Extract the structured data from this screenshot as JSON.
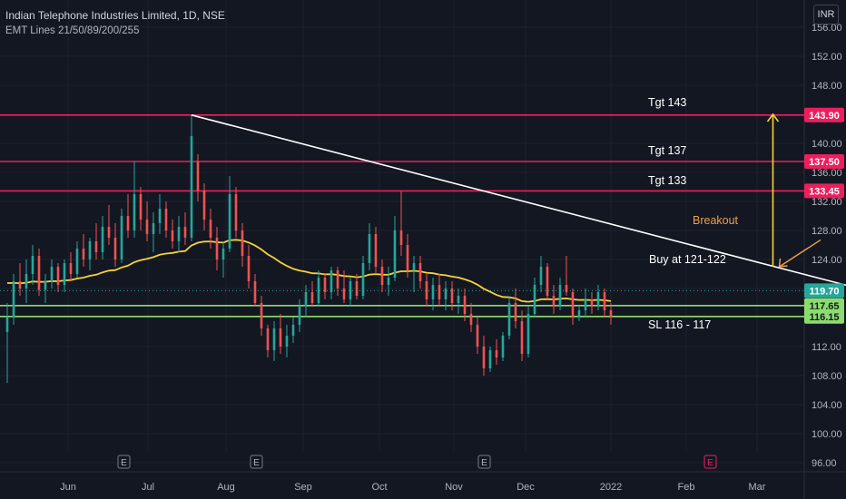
{
  "header": {
    "title": "Indian Telephone Industries Limited, 1D, NSE",
    "indicator": "EMT Lines 21/50/89/200/255"
  },
  "currency": "INR",
  "colors": {
    "background": "#131722",
    "grid": "#1e222d",
    "up": "#26a69a",
    "down": "#ef5350",
    "ema": "#f5d33b",
    "resistance": "#ec1f5d",
    "support": "#8bdc6e",
    "trendline": "#ffffff",
    "arrow": "#f5d33b",
    "breakout": "#f0a04b"
  },
  "chart_data": {
    "type": "candlestick",
    "yticks": [
      "156.00",
      "152.00",
      "148.00",
      "144.00",
      "140.00",
      "136.00",
      "132.00",
      "128.00",
      "124.00",
      "120.00",
      "116.00",
      "112.00",
      "108.00",
      "104.00",
      "100.00",
      "96.00"
    ],
    "ylim": [
      95,
      158
    ],
    "x_labels": [
      "Jun",
      "Jul",
      "Aug",
      "Sep",
      "Oct",
      "Nov",
      "Dec",
      "2022",
      "Feb",
      "Mar"
    ],
    "levels": [
      {
        "price": 143.9,
        "label": "143.90",
        "kind": "resistance"
      },
      {
        "price": 137.5,
        "label": "137.50",
        "kind": "resistance"
      },
      {
        "price": 133.45,
        "label": "133.45",
        "kind": "resistance"
      },
      {
        "price": 117.65,
        "label": "117.65",
        "kind": "support"
      },
      {
        "price": 116.15,
        "label": "116.15",
        "kind": "support"
      }
    ],
    "last_price": {
      "price": 119.7,
      "label": "119.70"
    },
    "annotations": {
      "tgt143": "Tgt 143",
      "tgt137": "Tgt 137",
      "tgt133": "Tgt 133",
      "breakout": "Breakout",
      "buy": "Buy at 121-122",
      "sl": "SL 116 - 117"
    },
    "earnings_markers": [
      {
        "label": "E",
        "day": 35
      },
      {
        "label": "E",
        "day": 97
      },
      {
        "label": "E",
        "day": 184
      },
      {
        "label": "E",
        "day": 269
      }
    ],
    "trendline": {
      "start": {
        "day": 58,
        "price": 143.9
      },
      "end": {
        "day": 268,
        "price": 120.0
      }
    },
    "target_arrow": {
      "day": 241,
      "from": 123.0,
      "to": 144.0
    },
    "breakout_arrow": {
      "from": {
        "day": 256,
        "price": 126.7
      },
      "to": {
        "day": 243,
        "price": 123.0
      }
    },
    "candles": [
      [
        0,
        114.0,
        118.0,
        107.0,
        116.0
      ],
      [
        2,
        116.0,
        122.0,
        115.0,
        121.0
      ],
      [
        4,
        121.0,
        123.5,
        119.0,
        120.0
      ],
      [
        6,
        120.0,
        124.0,
        118.0,
        122.0
      ],
      [
        8,
        122.0,
        126.0,
        120.5,
        124.5
      ],
      [
        10,
        124.5,
        125.5,
        119.0,
        119.8
      ],
      [
        12,
        119.8,
        122.0,
        118.0,
        121.0
      ],
      [
        14,
        121.0,
        124.0,
        120.0,
        123.0
      ],
      [
        16,
        123.0,
        123.5,
        119.5,
        120.5
      ],
      [
        18,
        120.5,
        124.0,
        119.5,
        123.5
      ],
      [
        20,
        123.5,
        125.0,
        121.0,
        122.0
      ],
      [
        22,
        122.0,
        126.5,
        121.5,
        125.5
      ],
      [
        24,
        125.5,
        127.5,
        123.0,
        124.0
      ],
      [
        26,
        124.0,
        127.0,
        122.5,
        126.5
      ],
      [
        28,
        126.5,
        129.0,
        124.0,
        125.0
      ],
      [
        30,
        125.0,
        130.0,
        124.0,
        128.5
      ],
      [
        32,
        128.5,
        131.5,
        126.0,
        127.0
      ],
      [
        34,
        127.0,
        129.0,
        123.0,
        124.0
      ],
      [
        36,
        124.0,
        131.0,
        123.5,
        130.0
      ],
      [
        38,
        130.0,
        133.0,
        127.0,
        128.0
      ],
      [
        40,
        128.0,
        137.5,
        127.0,
        133.0
      ],
      [
        42,
        133.0,
        134.0,
        128.0,
        129.5
      ],
      [
        44,
        129.5,
        132.0,
        126.5,
        127.5
      ],
      [
        46,
        127.5,
        130.5,
        125.0,
        129.0
      ],
      [
        48,
        129.0,
        133.0,
        127.5,
        131.0
      ],
      [
        50,
        131.0,
        132.0,
        127.0,
        128.0
      ],
      [
        52,
        128.0,
        129.5,
        125.5,
        126.5
      ],
      [
        54,
        126.5,
        130.0,
        125.0,
        128.5
      ],
      [
        56,
        128.5,
        130.5,
        126.0,
        127.0
      ],
      [
        58,
        127.0,
        143.9,
        126.5,
        141.0
      ],
      [
        60,
        137.5,
        138.5,
        132.0,
        133.5
      ],
      [
        62,
        133.5,
        134.5,
        128.0,
        129.5
      ],
      [
        64,
        129.5,
        131.0,
        125.5,
        127.0
      ],
      [
        66,
        127.0,
        128.5,
        122.5,
        124.0
      ],
      [
        68,
        124.0,
        126.5,
        121.5,
        125.5
      ],
      [
        70,
        125.5,
        135.5,
        125.0,
        133.0
      ],
      [
        72,
        133.0,
        134.0,
        127.0,
        128.0
      ],
      [
        74,
        128.0,
        129.0,
        123.0,
        124.5
      ],
      [
        76,
        124.5,
        126.0,
        120.0,
        121.0
      ],
      [
        78,
        121.0,
        122.0,
        117.5,
        118.0
      ],
      [
        80,
        118.0,
        119.0,
        113.5,
        114.5
      ],
      [
        82,
        114.5,
        115.0,
        110.5,
        111.5
      ],
      [
        84,
        111.5,
        115.5,
        110.0,
        114.5
      ],
      [
        86,
        114.5,
        116.5,
        111.0,
        112.0
      ],
      [
        88,
        112.0,
        115.0,
        110.5,
        113.5
      ],
      [
        90,
        113.5,
        116.0,
        112.5,
        115.0
      ],
      [
        92,
        115.0,
        118.5,
        114.0,
        117.5
      ],
      [
        94,
        117.5,
        120.5,
        116.0,
        119.5
      ],
      [
        96,
        119.5,
        121.0,
        117.5,
        118.0
      ],
      [
        98,
        118.0,
        122.5,
        117.5,
        121.5
      ],
      [
        100,
        121.5,
        122.0,
        118.5,
        119.5
      ],
      [
        102,
        119.5,
        123.0,
        118.5,
        122.5
      ],
      [
        104,
        122.5,
        123.0,
        119.0,
        120.0
      ],
      [
        106,
        120.0,
        122.5,
        118.0,
        118.5
      ],
      [
        108,
        118.5,
        121.5,
        117.5,
        121.0
      ],
      [
        110,
        121.0,
        122.0,
        118.5,
        119.0
      ],
      [
        112,
        119.0,
        124.5,
        118.5,
        123.5
      ],
      [
        114,
        123.5,
        129.0,
        122.5,
        127.5
      ],
      [
        116,
        127.5,
        128.5,
        122.0,
        123.0
      ],
      [
        118,
        123.0,
        124.0,
        119.5,
        120.5
      ],
      [
        120,
        120.5,
        123.0,
        119.0,
        121.5
      ],
      [
        122,
        121.5,
        130.0,
        121.0,
        128.0
      ],
      [
        124,
        128.0,
        133.45,
        124.5,
        126.0
      ],
      [
        126,
        126.0,
        127.5,
        121.5,
        122.5
      ],
      [
        128,
        122.5,
        124.5,
        119.5,
        123.5
      ],
      [
        130,
        123.5,
        124.5,
        120.0,
        121.0
      ],
      [
        132,
        121.0,
        122.0,
        117.5,
        118.5
      ],
      [
        134,
        118.5,
        121.5,
        117.0,
        120.5
      ],
      [
        136,
        120.5,
        122.0,
        117.5,
        118.5
      ],
      [
        138,
        118.5,
        121.0,
        117.0,
        120.0
      ],
      [
        140,
        120.0,
        121.0,
        117.0,
        118.0
      ],
      [
        142,
        118.0,
        120.0,
        116.5,
        119.0
      ],
      [
        144,
        119.0,
        120.0,
        115.5,
        116.5
      ],
      [
        146,
        116.5,
        118.0,
        114.0,
        115.0
      ],
      [
        148,
        115.0,
        116.0,
        111.0,
        112.0
      ],
      [
        150,
        112.0,
        113.5,
        108.0,
        109.0
      ],
      [
        152,
        109.0,
        112.0,
        108.5,
        111.5
      ],
      [
        154,
        111.5,
        113.0,
        109.5,
        110.5
      ],
      [
        156,
        110.5,
        114.0,
        110.0,
        113.5
      ],
      [
        158,
        113.5,
        119.0,
        113.0,
        118.0
      ],
      [
        160,
        118.0,
        120.0,
        114.5,
        115.5
      ],
      [
        162,
        115.5,
        117.0,
        110.0,
        111.0
      ],
      [
        164,
        111.0,
        117.5,
        110.5,
        116.5
      ],
      [
        166,
        116.5,
        121.5,
        116.0,
        120.5
      ],
      [
        168,
        120.5,
        124.5,
        119.5,
        123.0
      ],
      [
        170,
        123.0,
        123.5,
        118.5,
        119.0
      ],
      [
        172,
        119.0,
        120.5,
        116.5,
        117.5
      ],
      [
        174,
        117.5,
        121.5,
        117.0,
        120.5
      ],
      [
        176,
        120.5,
        124.5,
        119.0,
        119.5
      ],
      [
        178,
        119.5,
        120.0,
        115.0,
        116.0
      ],
      [
        180,
        116.0,
        117.5,
        115.5,
        117.0
      ],
      [
        182,
        117.0,
        120.0,
        116.0,
        118.5
      ],
      [
        184,
        118.5,
        119.5,
        116.5,
        117.5
      ],
      [
        186,
        117.5,
        120.5,
        117.0,
        119.5
      ],
      [
        188,
        119.5,
        120.0,
        116.0,
        117.0
      ],
      [
        190,
        117.0,
        118.0,
        115.0,
        116.0
      ]
    ]
  }
}
